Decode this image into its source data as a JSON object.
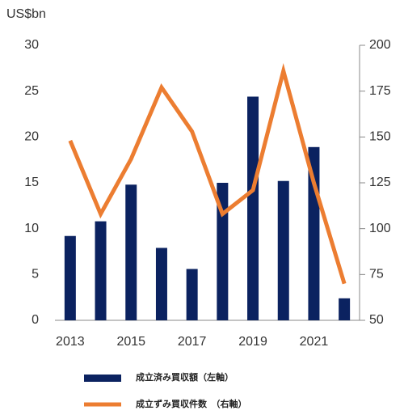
{
  "chart_data": {
    "type": "bar",
    "y_label": "US$bn",
    "categories": [
      "2013",
      null,
      "2015",
      null,
      "2017",
      null,
      "2019",
      null,
      "2021",
      null
    ],
    "series": [
      {
        "name": "成立済み買収額（左軸）",
        "type": "bar",
        "color": "#0b2260",
        "values": [
          9.2,
          10.8,
          14.8,
          7.9,
          5.6,
          15.0,
          24.4,
          15.2,
          18.9,
          2.4
        ]
      },
      {
        "name": "成立ずみ買収件数　（右軸）",
        "type": "line",
        "axis": "y2",
        "color": "#ec7d31",
        "values": [
          148,
          108,
          138,
          177,
          153,
          108,
          121,
          186,
          125,
          70
        ]
      }
    ],
    "ylim": [
      0,
      30
    ],
    "yticks": [
      0,
      5,
      10,
      15,
      20,
      25,
      30
    ],
    "y2lim": [
      50,
      200
    ],
    "y2ticks": [
      50,
      75,
      100,
      125,
      150,
      175,
      200
    ],
    "legend": "bottom"
  }
}
